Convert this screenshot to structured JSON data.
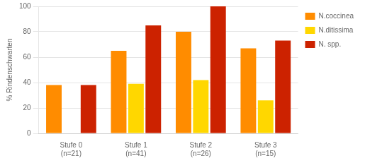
{
  "chart_data": {
    "type": "bar",
    "categories": [
      "Stufe 0\n(n=21)",
      "Stufe 1\n(n=41)",
      "Stufe 2\n(n=26)",
      "Stufe 3\n(n=15)"
    ],
    "series": [
      {
        "name": "N.coccinea",
        "color": "#FF8C00",
        "values": [
          38,
          65,
          80,
          67
        ]
      },
      {
        "name": "N.ditissima",
        "color": "#FFD700",
        "values": [
          0,
          39,
          42,
          26
        ]
      },
      {
        "name": "N. spp.",
        "color": "#CC2200",
        "values": [
          38,
          85,
          100,
          73
        ]
      }
    ],
    "ylabel": "% Rindenschwarten",
    "ylim": [
      0,
      100
    ],
    "yticks": [
      0,
      20,
      40,
      60,
      80,
      100
    ],
    "grid": true,
    "legend": "right"
  }
}
